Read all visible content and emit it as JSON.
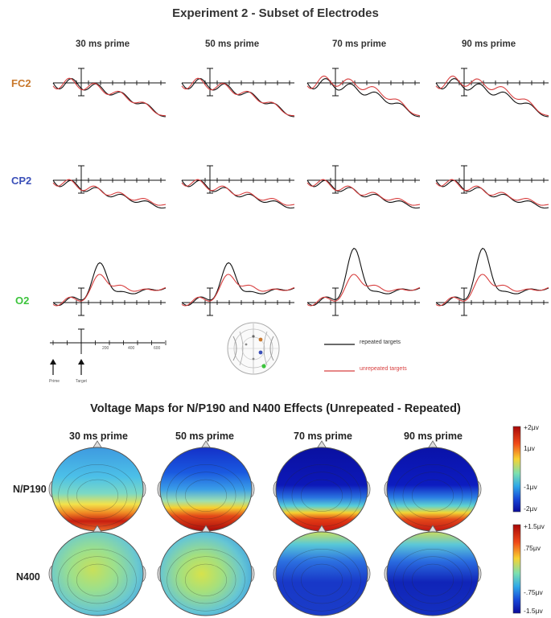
{
  "figure": {
    "title": "Experiment 2 - Subset of Electrodes",
    "columns": [
      "30 ms prime",
      "50 ms prime",
      "70 ms prime",
      "90 ms prime"
    ],
    "electrodes": [
      {
        "label": "FC2",
        "color": "#c8782c"
      },
      {
        "label": "CP2",
        "color": "#3a4fb8"
      },
      {
        "label": "O2",
        "color": "#3cc43c"
      }
    ],
    "scale_labels": {
      "prime": "Prime",
      "target": "Target",
      "ticks": [
        "200",
        "400",
        "600"
      ]
    },
    "legend": {
      "repeated": "repeated targets",
      "unrepeated": "unrepeated targets",
      "repeated_color": "#111111",
      "unrepeated_color": "#d84040"
    }
  },
  "maps": {
    "title": "Voltage Maps for N/P190 and N400 Effects (Unrepeated - Repeated)",
    "columns": [
      "30 ms prime",
      "50 ms prime",
      "70 ms prime",
      "90 ms prime"
    ],
    "rows": [
      {
        "label": "N/P190",
        "colorbar_ticks": [
          "+2µv",
          "1µv",
          "-1µv",
          "-2µv"
        ]
      },
      {
        "label": "N400",
        "colorbar_ticks": [
          "+1.5µv",
          ".75µv",
          "-.75µv",
          "-1.5µv"
        ]
      }
    ]
  }
}
